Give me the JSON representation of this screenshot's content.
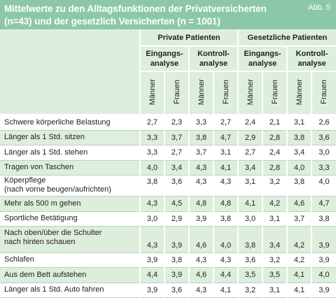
{
  "title": "Mittelwerte zu den Alltagsfunktionen der Privatversicherten (n=43) und der gesetzlich Versicherten (n = 1001)",
  "figure_label": "Abb. 5",
  "header": {
    "groups": [
      "Private Patienten",
      "Gesetzliche Patienten"
    ],
    "subgroups": [
      "Eingangs-\nanalyse",
      "Kontroll-\nanalyse",
      "Eingangs-\nanalyse",
      "Kontroll-\nanalyse"
    ],
    "genders": [
      "Männer",
      "Frauen",
      "Männer",
      "Frauen",
      "Männer",
      "Frauen",
      "Männer",
      "Frauen"
    ]
  },
  "rows": [
    {
      "label": "Schwere körperliche Belastung",
      "values": [
        "2,7",
        "2,3",
        "3,3",
        "2,7",
        "2,4",
        "2,1",
        "3,1",
        "2,6"
      ]
    },
    {
      "label": "Länger als 1 Std. sitzen",
      "values": [
        "3,3",
        "3,7",
        "3,8",
        "4,7",
        "2,9",
        "2,8",
        "3,8",
        "3,6"
      ]
    },
    {
      "label": "Länger als 1 Std. stehen",
      "values": [
        "3,3",
        "2,7",
        "3,7",
        "3,1",
        "2,7",
        "2,4",
        "3,4",
        "3,0"
      ]
    },
    {
      "label": "Tragen von Taschen",
      "values": [
        "4,0",
        "3,4",
        "4,3",
        "4,1",
        "3,4",
        "2,8",
        "4,0",
        "3,3"
      ]
    },
    {
      "label": "Köperpflege\n(nach vorne beugen/aufrichten)",
      "values": [
        "3,8",
        "3,6",
        "4,3",
        "4,3",
        "3,1",
        "3,2",
        "3,8",
        "4,0"
      ]
    },
    {
      "label": "Mehr als 500 m gehen",
      "values": [
        "4,3",
        "4,5",
        "4,8",
        "4,8",
        "4,1",
        "4,2",
        "4,6",
        "4,7"
      ]
    },
    {
      "label": "Sportliche Betätigung",
      "values": [
        "3,0",
        "2,9",
        "3,9",
        "3,8",
        "3,0",
        "3,1",
        "3,7",
        "3,8"
      ]
    },
    {
      "label": "Nach oben/über die Schulter\nnach hinten schauen",
      "values": [
        "4,3",
        "3,9",
        "4,6",
        "4,0",
        "3,8",
        "3,4",
        "4,2",
        "3,9"
      ]
    },
    {
      "label": "Schlafen",
      "values": [
        "3,9",
        "3,8",
        "4,3",
        "4,3",
        "3,6",
        "3,2",
        "4,2",
        "3,9"
      ]
    },
    {
      "label": "Aus dem Bett aufstehen",
      "values": [
        "4,4",
        "3,9",
        "4,6",
        "4,4",
        "3,5",
        "3,5",
        "4,1",
        "4,0"
      ]
    },
    {
      "label": "Länger als 1 Std. Auto fahren",
      "values": [
        "3,9",
        "3,6",
        "4,3",
        "4,1",
        "3,2",
        "3,1",
        "4,1",
        "3,9"
      ]
    }
  ]
}
